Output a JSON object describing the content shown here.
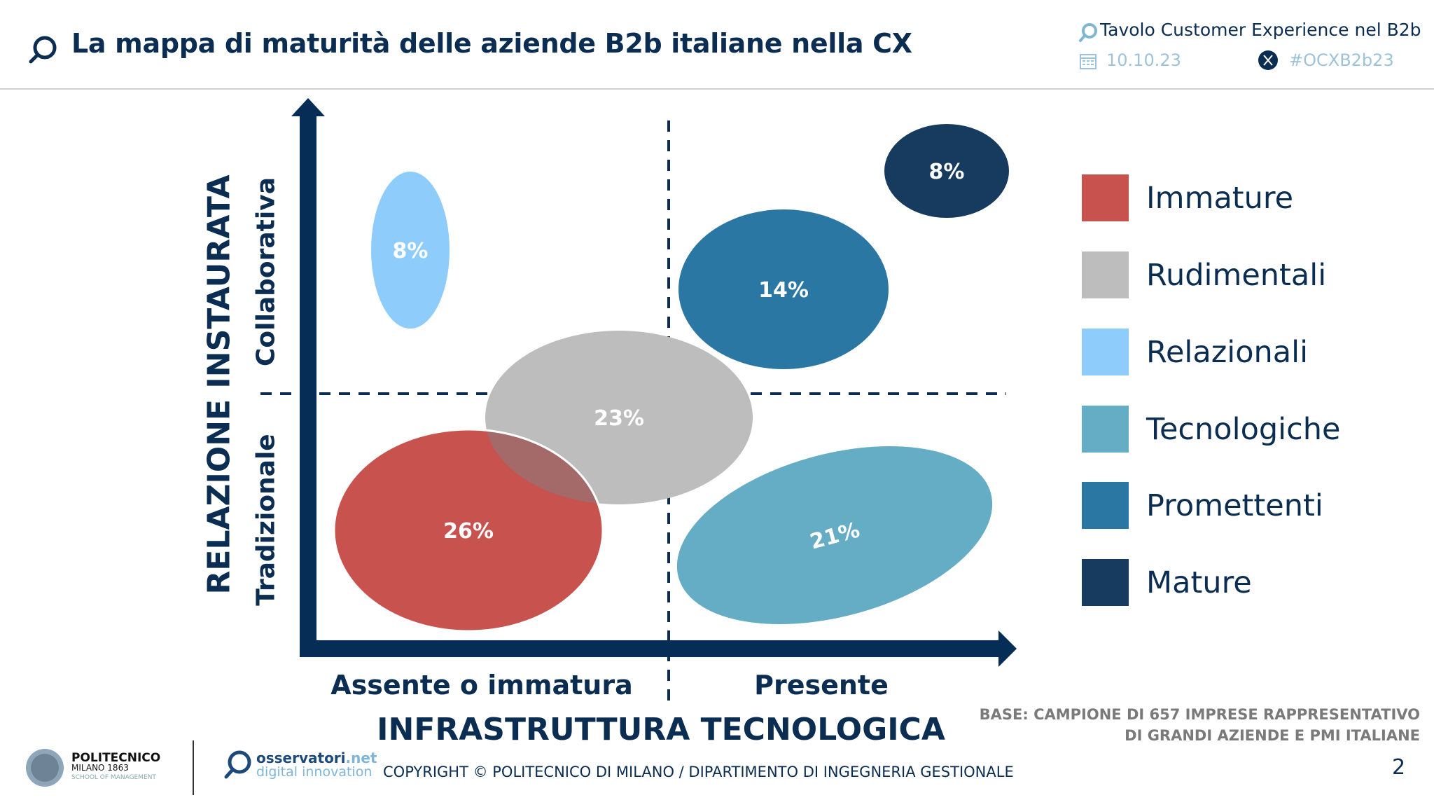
{
  "header": {
    "title": "La mappa di maturità delle aziende B2b italiane nella CX",
    "event": "Tavolo Customer Experience nel B2b",
    "date": "10.10.23",
    "hashtag": "#OCXB2b23",
    "icons": [
      "search-logo-icon",
      "calendar-icon",
      "x-twitter-icon"
    ]
  },
  "chart_data": {
    "type": "scatter",
    "title": "",
    "xlabel": "INFRASTRUTTURA TECNOLOGICA",
    "ylabel": "RELAZIONE INSTAURATA",
    "x_categories": [
      "Assente o immatura",
      "Presente"
    ],
    "y_categories": [
      "Tradizionale",
      "Collaborativa"
    ],
    "grid": "quadrant dashed lines",
    "legend_position": "right",
    "segments": [
      {
        "name": "Immature",
        "label": "26%",
        "value": 26,
        "x": "Assente o immatura",
        "y": "Tradizionale",
        "color": "#c8524e"
      },
      {
        "name": "Rudimentali",
        "label": "23%",
        "value": 23,
        "x": "Assente o immatura / Presente",
        "y": "Tradizionale / Collaborativa",
        "color": "#bdbdbd"
      },
      {
        "name": "Relazionali",
        "label": "8%",
        "value": 8,
        "x": "Assente o immatura",
        "y": "Collaborativa",
        "color": "#8ecdfb"
      },
      {
        "name": "Tecnologiche",
        "label": "21%",
        "value": 21,
        "x": "Presente",
        "y": "Tradizionale",
        "color": "#64adc4"
      },
      {
        "name": "Promettenti",
        "label": "14%",
        "value": 14,
        "x": "Presente",
        "y": "Collaborativa",
        "color": "#2b77a4"
      },
      {
        "name": "Mature",
        "label": "8%",
        "value": 8,
        "x": "Presente",
        "y": "Collaborativa",
        "color": "#163b5e"
      }
    ]
  },
  "footer": {
    "base_line1": "BASE: CAMPIONE DI 657 IMPRESE RAPPRESENTATIVO",
    "base_line2": "DI GRANDI AZIENDE E PMI ITALIANE",
    "copyright": "COPYRIGHT © POLITECNICO DI MILANO / DIPARTIMENTO DI INGEGNERIA GESTIONALE",
    "page": "2",
    "poli_name": "POLITECNICO",
    "poli_city": "MILANO 1863",
    "poli_school": "SCHOOL OF MANAGEMENT",
    "oss_a": "osservatori",
    "oss_a2": ".net",
    "oss_b": "digital innovation"
  },
  "colors": {
    "navy": "#062d55",
    "accent_light": "#9cc3da"
  }
}
